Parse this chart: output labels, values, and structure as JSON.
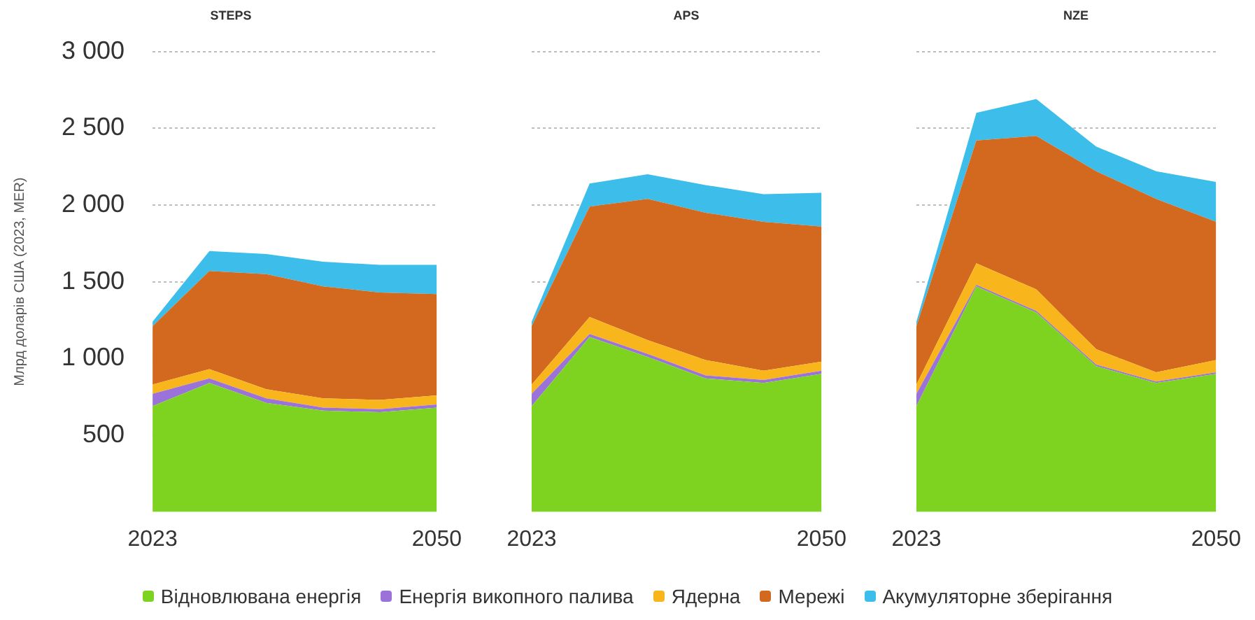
{
  "chart_data": [
    {
      "type": "area",
      "title": "STEPS",
      "ylabel": "Млрд доларів США (2023, MER)",
      "categories": [
        "2023",
        null,
        null,
        null,
        null,
        "2050"
      ],
      "stacked": true,
      "ylim": [
        0,
        3000
      ],
      "yticks": [
        500,
        {
          "value": 1000,
          "label": "1 000"
        },
        {
          "value": 1500,
          "label": "1 500"
        },
        {
          "value": 2000,
          "label": "2 000"
        },
        {
          "value": 2500,
          "label": "2 500"
        },
        {
          "value": 3000,
          "label": "3 000"
        }
      ],
      "grid": "y",
      "legend": "bottom",
      "marker": "none",
      "series": [
        {
          "name": "Відновлювана енергія",
          "color": "#7ed321",
          "values": [
            690,
            840,
            710,
            660,
            650,
            680
          ]
        },
        {
          "name": "Енергія викопного палива",
          "color": "#9b72d9",
          "values": [
            80,
            30,
            30,
            20,
            20,
            20
          ]
        },
        {
          "name": "Ядерна",
          "color": "#f8b51c",
          "values": [
            60,
            60,
            60,
            60,
            60,
            60
          ]
        },
        {
          "name": "Мережі",
          "color": "#d2691e",
          "values": [
            380,
            640,
            750,
            730,
            700,
            660
          ]
        },
        {
          "name": "Акумуляторне зберігання",
          "color": "#3cbdea",
          "values": [
            30,
            130,
            130,
            160,
            180,
            190
          ]
        }
      ]
    },
    {
      "type": "area",
      "title": "APS",
      "categories": [
        "2023",
        null,
        null,
        null,
        null,
        "2050"
      ],
      "stacked": true,
      "ylim": [
        0,
        3000
      ],
      "yticks": [
        500,
        1000,
        1500,
        2000,
        2500,
        3000
      ],
      "grid": "y",
      "tick_labels": "x",
      "marker": "none",
      "series": [
        {
          "color": "#7ed321",
          "values": [
            690,
            1140,
            1010,
            870,
            840,
            900
          ]
        },
        {
          "color": "#9b72d9",
          "values": [
            80,
            20,
            20,
            20,
            20,
            20
          ]
        },
        {
          "color": "#f8b51c",
          "values": [
            60,
            110,
            90,
            100,
            60,
            60
          ]
        },
        {
          "color": "#d2691e",
          "values": [
            380,
            720,
            920,
            960,
            970,
            880
          ]
        },
        {
          "color": "#3cbdea",
          "values": [
            30,
            150,
            160,
            180,
            180,
            220
          ]
        }
      ]
    },
    {
      "type": "area",
      "title": "NZE",
      "categories": [
        "2023",
        null,
        null,
        null,
        null,
        "2050"
      ],
      "stacked": true,
      "ylim": [
        0,
        3000
      ],
      "yticks": [
        500,
        1000,
        1500,
        2000,
        2500,
        3000
      ],
      "grid": "y",
      "tick_labels": "x",
      "marker": "none",
      "series": [
        {
          "color": "#7ed321",
          "values": [
            690,
            1470,
            1300,
            950,
            840,
            900
          ]
        },
        {
          "color": "#9b72d9",
          "values": [
            80,
            10,
            10,
            10,
            10,
            10
          ]
        },
        {
          "color": "#f8b51c",
          "values": [
            60,
            140,
            140,
            100,
            60,
            80
          ]
        },
        {
          "color": "#d2691e",
          "values": [
            380,
            800,
            1000,
            1160,
            1130,
            900
          ]
        },
        {
          "color": "#3cbdea",
          "values": [
            30,
            180,
            240,
            160,
            180,
            260
          ]
        }
      ]
    }
  ]
}
